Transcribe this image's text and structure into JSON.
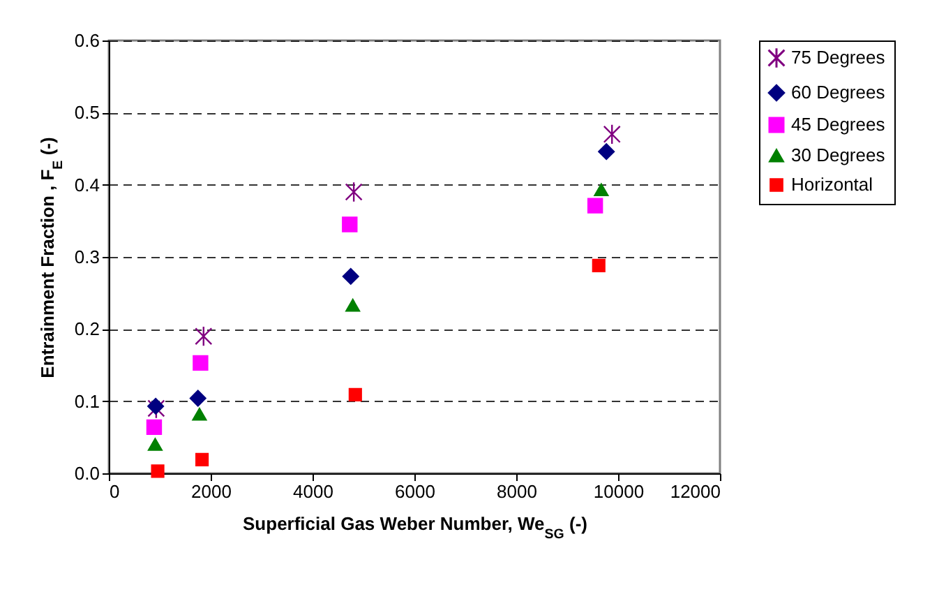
{
  "chart_data": {
    "type": "scatter",
    "xlabel": "Superficial Gas Weber Number, We$_{SG}$ (-)",
    "ylabel": "Entrainment Fraction , F$_{E}$ (-)",
    "xlim": [
      0,
      12000
    ],
    "xticks": [
      0,
      2000,
      4000,
      6000,
      8000,
      10000,
      12000
    ],
    "ylim": [
      0,
      0.6
    ],
    "yticks": [
      {
        "value": 0,
        "label": "0.0"
      },
      {
        "value": 0.1,
        "label": "0.1"
      },
      {
        "value": 0.2,
        "label": "0.2"
      },
      {
        "value": 0.3,
        "label": "0.3"
      },
      {
        "value": 0.4,
        "label": "0.4"
      },
      {
        "value": 0.5,
        "label": "0.5"
      },
      {
        "value": 0.6,
        "label": "0.6"
      }
    ],
    "grid": "y",
    "legend": "right",
    "series": [
      {
        "name": "75 Degrees",
        "color": "#800080",
        "marker": "cross",
        "x": [
          930,
          1860,
          4810,
          9880
        ],
        "values": [
          0.09,
          0.19,
          0.39,
          0.47
        ]
      },
      {
        "name": "60 Degrees",
        "color": "#000080",
        "marker": "diamond",
        "x": [
          920,
          1750,
          4750,
          9770
        ],
        "values": [
          0.093,
          0.104,
          0.273,
          0.446
        ]
      },
      {
        "name": "45 Degrees",
        "color": "#ff00ff",
        "marker": "square",
        "x": [
          890,
          1800,
          4730,
          9550
        ],
        "values": [
          0.064,
          0.153,
          0.345,
          0.371
        ]
      },
      {
        "name": "30 Degrees",
        "color": "#008000",
        "marker": "triangle",
        "x": [
          910,
          1780,
          4790,
          9670
        ],
        "values": [
          0.04,
          0.082,
          0.233,
          0.393
        ]
      },
      {
        "name": "Horizontal",
        "color": "#ff0000",
        "marker": "square",
        "x": [
          960,
          1830,
          4840,
          9620
        ],
        "values": [
          0.003,
          0.019,
          0.109,
          0.288
        ]
      }
    ]
  }
}
